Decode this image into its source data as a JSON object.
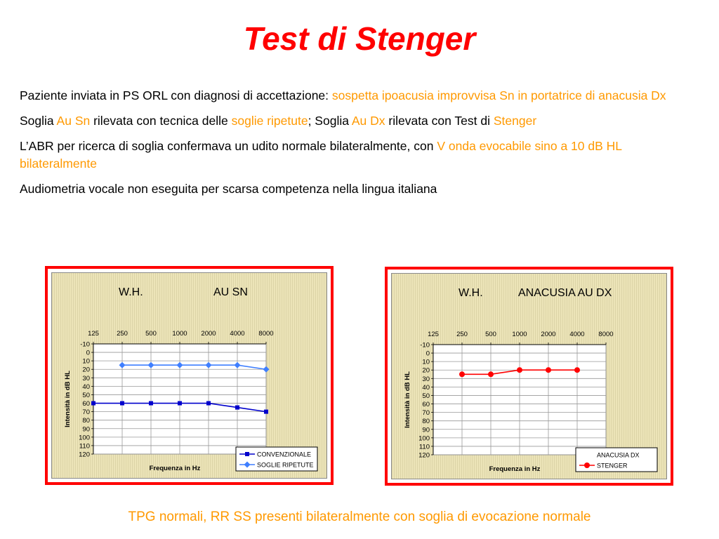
{
  "title": "Test di Stenger",
  "paragraphs": {
    "p1": {
      "a": "Paziente inviata in PS ORL con diagnosi di accettazione",
      "b": ": ",
      "c": "sospetta ipoacusia improvvisa Sn  in portatrice di anacusia Dx"
    },
    "p2": {
      "a": "Soglia ",
      "b": "Au Sn",
      "c": " rilevata con tecnica delle ",
      "d": "soglie ripetute",
      "e": "; Soglia ",
      "f": "Au Dx",
      "g": " rilevata con Test di ",
      "h": "Stenger"
    },
    "p3": {
      "a": "L’ABR per ricerca di soglia confermava un udito normale bilateralmente, con ",
      "b": "V onda evocabile sino a 10 dB HL bilateralmente"
    },
    "p4": {
      "a": "Audiometria vocale non eseguita per scarsa competenza nella lingua italiana"
    }
  },
  "footer": "TPG normali, RR SS presenti bilateralmente con soglia di evocazione normale",
  "colors": {
    "accent_red": "#ff0000",
    "accent_orange": "#ff9900",
    "series_dark_blue": "#0000cc",
    "series_light_blue": "#3f7fff",
    "series_red": "#ff0000"
  },
  "chart_data": [
    {
      "type": "line",
      "title_left": "W.H.",
      "title_right": "AU SN",
      "x": [
        "125",
        "250",
        "500",
        "1000",
        "2000",
        "4000",
        "8000"
      ],
      "xlabel": "Frequenza in Hz",
      "ylabel": "Intensità in dB HL",
      "y_ticks": [
        -10,
        0,
        10,
        20,
        30,
        40,
        50,
        60,
        70,
        80,
        90,
        100,
        110,
        120
      ],
      "ylim": [
        -10,
        120
      ],
      "y_inverted": true,
      "x_axis_position": "top",
      "grid": true,
      "legend_position": "bottom-right",
      "series": [
        {
          "name": "CONVENZIONALE",
          "marker": "square",
          "color": "#0000cc",
          "values": [
            60,
            60,
            60,
            60,
            60,
            65,
            70
          ]
        },
        {
          "name": "SOGLIE RIPETUTE",
          "marker": "diamond",
          "color": "#3f7fff",
          "values": [
            null,
            15,
            15,
            15,
            15,
            15,
            20
          ]
        }
      ]
    },
    {
      "type": "line",
      "title_left": "W.H.",
      "title_right": "ANACUSIA AU DX",
      "x": [
        "125",
        "250",
        "500",
        "1000",
        "2000",
        "4000",
        "8000"
      ],
      "xlabel": "Frequenza in Hz",
      "ylabel": "Intensità in dB HL",
      "y_ticks": [
        -10,
        0,
        10,
        20,
        30,
        40,
        50,
        60,
        70,
        80,
        90,
        100,
        110,
        120
      ],
      "ylim": [
        -10,
        120
      ],
      "y_inverted": true,
      "x_axis_position": "top",
      "grid": true,
      "legend_position": "bottom-right",
      "series": [
        {
          "name": "ANACUSIA DX",
          "marker": "none",
          "color": "#000000",
          "values": [
            null,
            null,
            null,
            null,
            null,
            null,
            null
          ]
        },
        {
          "name": "STENGER",
          "marker": "circle",
          "color": "#ff0000",
          "values": [
            null,
            25,
            25,
            20,
            20,
            20,
            null
          ]
        }
      ]
    }
  ]
}
